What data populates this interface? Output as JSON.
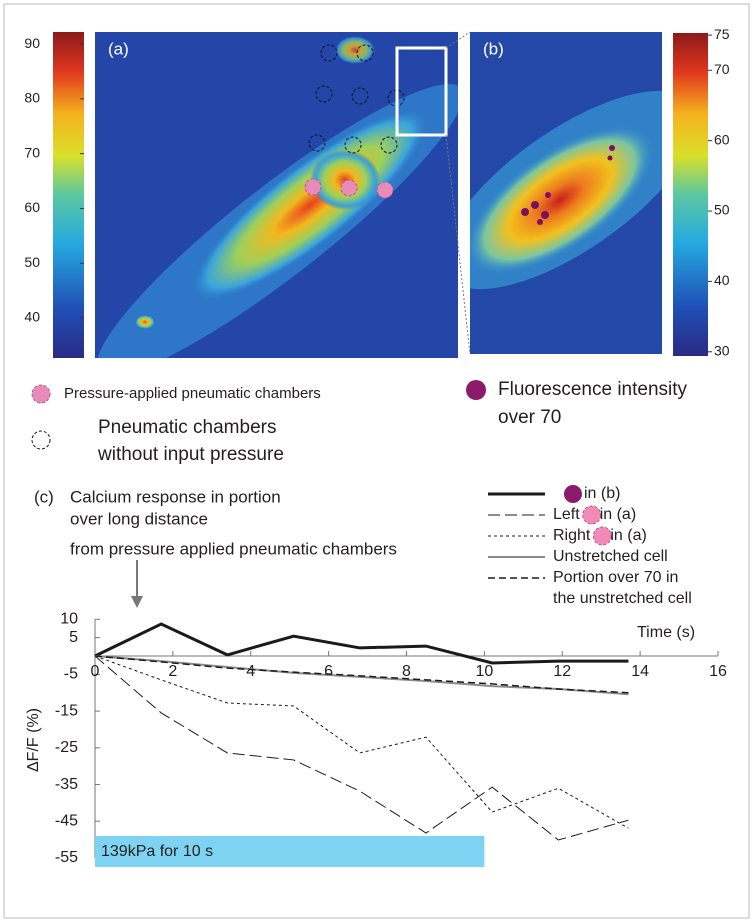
{
  "panels": {
    "a": {
      "label": "(a)",
      "colorbar": {
        "lim": [
          32.7,
          92.2
        ],
        "ticks": [
          40,
          50,
          60,
          70,
          80,
          90
        ]
      }
    },
    "b": {
      "label": "(b)",
      "colorbar": {
        "lim": [
          29.4,
          75.3
        ],
        "ticks": [
          30,
          40,
          50,
          60,
          70,
          75
        ]
      }
    },
    "legend": {
      "pressured": "Pressure-applied pneumatic chambers",
      "fluorescence": [
        "Fluorescence intensity",
        "over 70"
      ],
      "unpressured": [
        "Pneumatic chambers",
        "without input pressure"
      ]
    }
  },
  "chart_data": {
    "type": "line",
    "label": "(c)",
    "x_label": "Time (s)",
    "y_label": "ΔF/F (%)",
    "annotation": [
      "Calcium response in portion",
      "over long distance",
      "from pressure applied pneumatic chambers"
    ],
    "stimulus": {
      "label": "139kPa for 10 s",
      "x": [
        0,
        10
      ],
      "color": "#7fd3f2"
    },
    "xlim": [
      0,
      16
    ],
    "xticks": [
      0,
      2,
      4,
      6,
      8,
      10,
      12,
      14,
      16
    ],
    "ylim": [
      -55,
      10
    ],
    "yticks": [
      10,
      5,
      -5,
      -15,
      -25,
      -35,
      -45,
      -55
    ],
    "x": [
      0,
      1.7,
      3.4,
      5.1,
      6.8,
      8.5,
      10.2,
      11.9,
      13.7
    ],
    "series": [
      {
        "name": [
          "in (b)"
        ],
        "marker": "#8b1a6b",
        "color": "#1a1a1a",
        "dash": "solid",
        "width": 3,
        "values": [
          0,
          8.7,
          0.3,
          5.4,
          2.2,
          2.7,
          -1.9,
          -1.4,
          -1.4
        ]
      },
      {
        "name": [
          "Left",
          "in (a)"
        ],
        "marker": "#f28ab8",
        "color": "#1a1a1a",
        "dash": "longdash",
        "width": 1,
        "values": [
          0,
          -15.5,
          -26.4,
          -28.3,
          -36.8,
          -48.2,
          -35.7,
          -50.1,
          -44.7
        ]
      },
      {
        "name": [
          "Right",
          "in (a)"
        ],
        "marker": "#f28ab8",
        "color": "#1a1a1a",
        "dash": "dot",
        "width": 1,
        "values": [
          0,
          -6.5,
          -12.8,
          -13.6,
          -26.4,
          -22.1,
          -42.5,
          -36.0,
          -46.9
        ]
      },
      {
        "name": [
          "Unstretched cell"
        ],
        "color": "#8a8a8a",
        "dash": "solid",
        "width": 2,
        "values": [
          0,
          -1.4,
          -3.0,
          -4.6,
          -5.7,
          -6.8,
          -8.2,
          -9.0,
          -10.4
        ]
      },
      {
        "name": [
          "Portion over 70 in",
          "the unstretched cell"
        ],
        "color": "#1a1a1a",
        "dash": "dash",
        "width": 1.5,
        "values": [
          0,
          -1.6,
          -3.3,
          -4.4,
          -5.4,
          -6.5,
          -7.6,
          -9.0,
          -10.0
        ]
      }
    ]
  }
}
